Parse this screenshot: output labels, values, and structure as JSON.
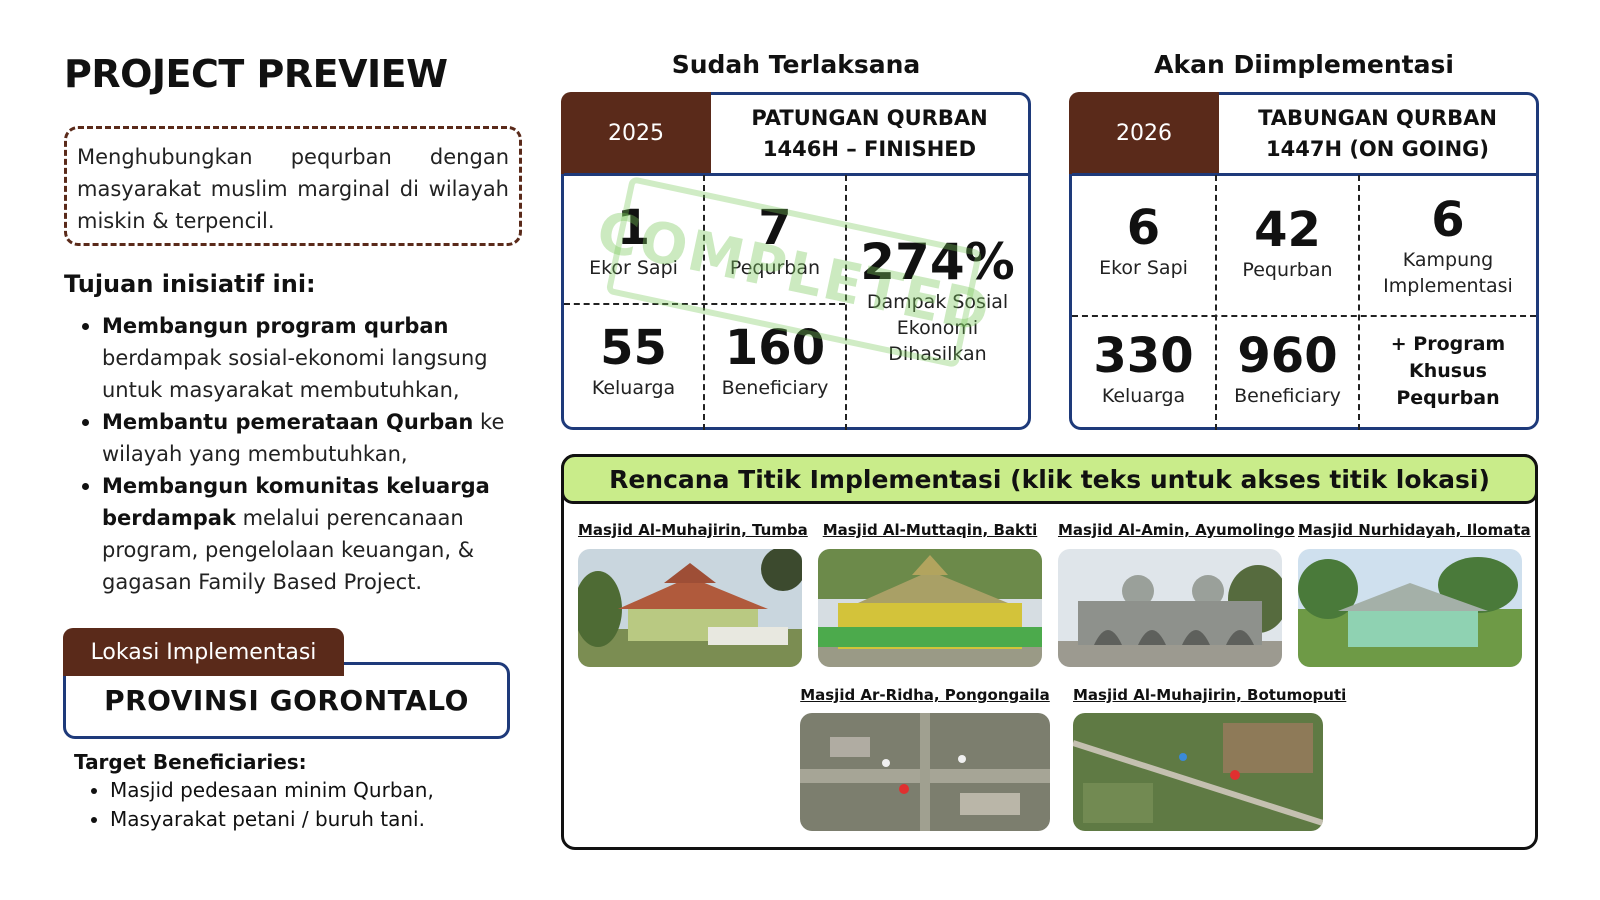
{
  "title": "PROJECT PREVIEW",
  "intro": "Menghubungkan pequrban dengan masyarakat muslim marginal di wilayah miskin & terpencil.",
  "goals": {
    "heading": "Tujuan inisiatif ini:",
    "items": [
      {
        "bold": "Membangun program qurban",
        "rest": " berdampak sosial-ekonomi langsung untuk masyarakat membutuhkan,"
      },
      {
        "bold": "Membantu pemerataan Qurban",
        "rest": " ke wilayah yang membutuhkan,"
      },
      {
        "bold": "Membangun komunitas keluarga berdampak",
        "rest": " melalui perencanaan program, pengelolaan keuangan, & gagasan Family Based Project."
      }
    ]
  },
  "location": {
    "tab": "Lokasi Implementasi",
    "value": "PROVINSI GORONTALO"
  },
  "targets": {
    "heading": "Target Beneficiaries:",
    "items": [
      "Masjid pedesaan minim Qurban,",
      "Masyarakat petani / buruh tani."
    ]
  },
  "done": {
    "heading": "Sudah Terlaksana",
    "year": "2025",
    "title_line1": "PATUNGAN QURBAN",
    "title_line2": "1446H – FINISHED",
    "stats": [
      {
        "value": "1",
        "label": "Ekor Sapi"
      },
      {
        "value": "7",
        "label": "Pequrban"
      },
      {
        "value": "55",
        "label": "Keluarga"
      },
      {
        "value": "160",
        "label": "Beneficiary"
      }
    ],
    "impact_value": "274%",
    "impact_label_lines": [
      "Dampak Sosial",
      "Ekonomi",
      "Dihasilkan"
    ],
    "stamp": "COMPLETED"
  },
  "planned": {
    "heading": "Akan Diimplementasi",
    "year": "2026",
    "title_line1": "TABUNGAN QURBAN",
    "title_line2": "1447H (ON GOING)",
    "stats": [
      {
        "value": "6",
        "label": "Ekor Sapi"
      },
      {
        "value": "42",
        "label": "Pequrban"
      },
      {
        "value": "6",
        "label_lines": [
          "Kampung",
          "Implementasi"
        ]
      },
      {
        "value": "330",
        "label": "Keluarga"
      },
      {
        "value": "960",
        "label": "Beneficiary"
      },
      {
        "value": "",
        "label_lines": [
          "+ Program",
          "Khusus",
          "Pequrban"
        ]
      }
    ]
  },
  "plan": {
    "heading": "Rencana Titik Implementasi (klik teks untuk akses titik lokasi)",
    "mosques": [
      {
        "name": "Masjid Al-Muhajirin, Tumba"
      },
      {
        "name": "Masjid Al-Muttaqin, Bakti"
      },
      {
        "name": "Masjid Al-Amin, Ayumolingo"
      },
      {
        "name": "Masjid Nurhidayah, Ilomata"
      },
      {
        "name": "Masjid Ar-Ridha, Pongongaila"
      },
      {
        "name": "Masjid Al-Muhajirin, Botumoputi"
      }
    ]
  },
  "colors": {
    "brown": "#5a2a1a",
    "navy": "#1e3a7a",
    "lime": "#c9ec8a"
  }
}
